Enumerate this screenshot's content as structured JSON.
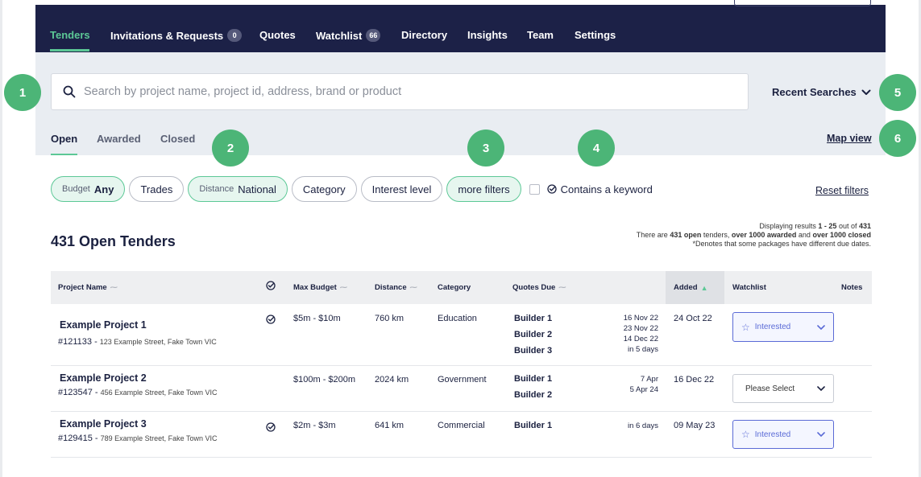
{
  "nav": {
    "items": [
      {
        "label": "Tenders",
        "active": true
      },
      {
        "label": "Invitations & Requests",
        "badge": "0"
      },
      {
        "label": "Quotes"
      },
      {
        "label": "Watchlist",
        "badge": "66"
      },
      {
        "label": "Directory"
      },
      {
        "label": "Insights"
      },
      {
        "label": "Team"
      },
      {
        "label": "Settings"
      }
    ]
  },
  "search": {
    "placeholder": "Search by project name, project id, address, brand or product",
    "recent_label": "Recent Searches"
  },
  "status_tabs": [
    "Open",
    "Awarded",
    "Closed"
  ],
  "map_view": "Map view",
  "filters": {
    "budget": {
      "sub": "Budget",
      "value": "Any"
    },
    "trades": "Trades",
    "distance": {
      "sub": "Distance",
      "value": "National"
    },
    "category": "Category",
    "interest": "Interest level",
    "more": "more filters",
    "keyword": "Contains a keyword",
    "reset": "Reset filters"
  },
  "results": {
    "line1_a": "Displaying results ",
    "line1_range": "1 - 25",
    "line1_b": " out of ",
    "line1_total": "431",
    "line2_a": "There are ",
    "line2_open": "431 open",
    "line2_b": " tenders, ",
    "line2_awarded": "over 1000 awarded",
    "line2_c": " and ",
    "line2_closed": "over 1000 closed",
    "line3": "*Denotes that some packages have different due dates.",
    "heading": "431 Open Tenders"
  },
  "table": {
    "headers": {
      "project": "Project Name",
      "budget": "Max Budget",
      "distance": "Distance",
      "category": "Category",
      "quotes_due": "Quotes Due",
      "added": "Added",
      "watchlist": "Watchlist",
      "notes": "Notes"
    },
    "rows": [
      {
        "name": "Example Project 1",
        "id": "#121133 -",
        "address": "123 Example Street, Fake Town VIC",
        "budget": "$5m - $10m",
        "distance": "760 km",
        "category": "Education",
        "builders": [
          "Builder 1",
          "Builder 2",
          "Builder 3"
        ],
        "due": [
          "16 Nov 22",
          "23 Nov 22",
          "14 Dec 22",
          "in 5 days"
        ],
        "added": "24 Oct 22",
        "watch": "Interested"
      },
      {
        "name": "Example Project 2",
        "id": "#123547 -",
        "address": "456 Example Street, Fake Town VIC",
        "budget": "$100m - $200m",
        "distance": "2024 km",
        "category": "Government",
        "builders": [
          "Builder 1",
          "Builder 2"
        ],
        "due": [
          "7 Apr",
          "5 Apr 24"
        ],
        "added": "16 Dec 22",
        "watch": "Please Select"
      },
      {
        "name": "Example Project 3",
        "id": "#129415 -",
        "address": "789 Example Street, Fake Town VIC",
        "budget": "$2m - $3m",
        "distance": "641 km",
        "category": "Commercial",
        "builders": [
          "Builder 1"
        ],
        "due": [
          "in 6 days"
        ],
        "added": "09 May 23",
        "watch": "Interested"
      }
    ]
  },
  "markers": [
    "1",
    "2",
    "3",
    "4",
    "5",
    "6"
  ],
  "colors": {
    "navy": "#1c2147",
    "accent": "#5cc896",
    "marker": "#4cb577",
    "interested": "#5a6ad6"
  }
}
